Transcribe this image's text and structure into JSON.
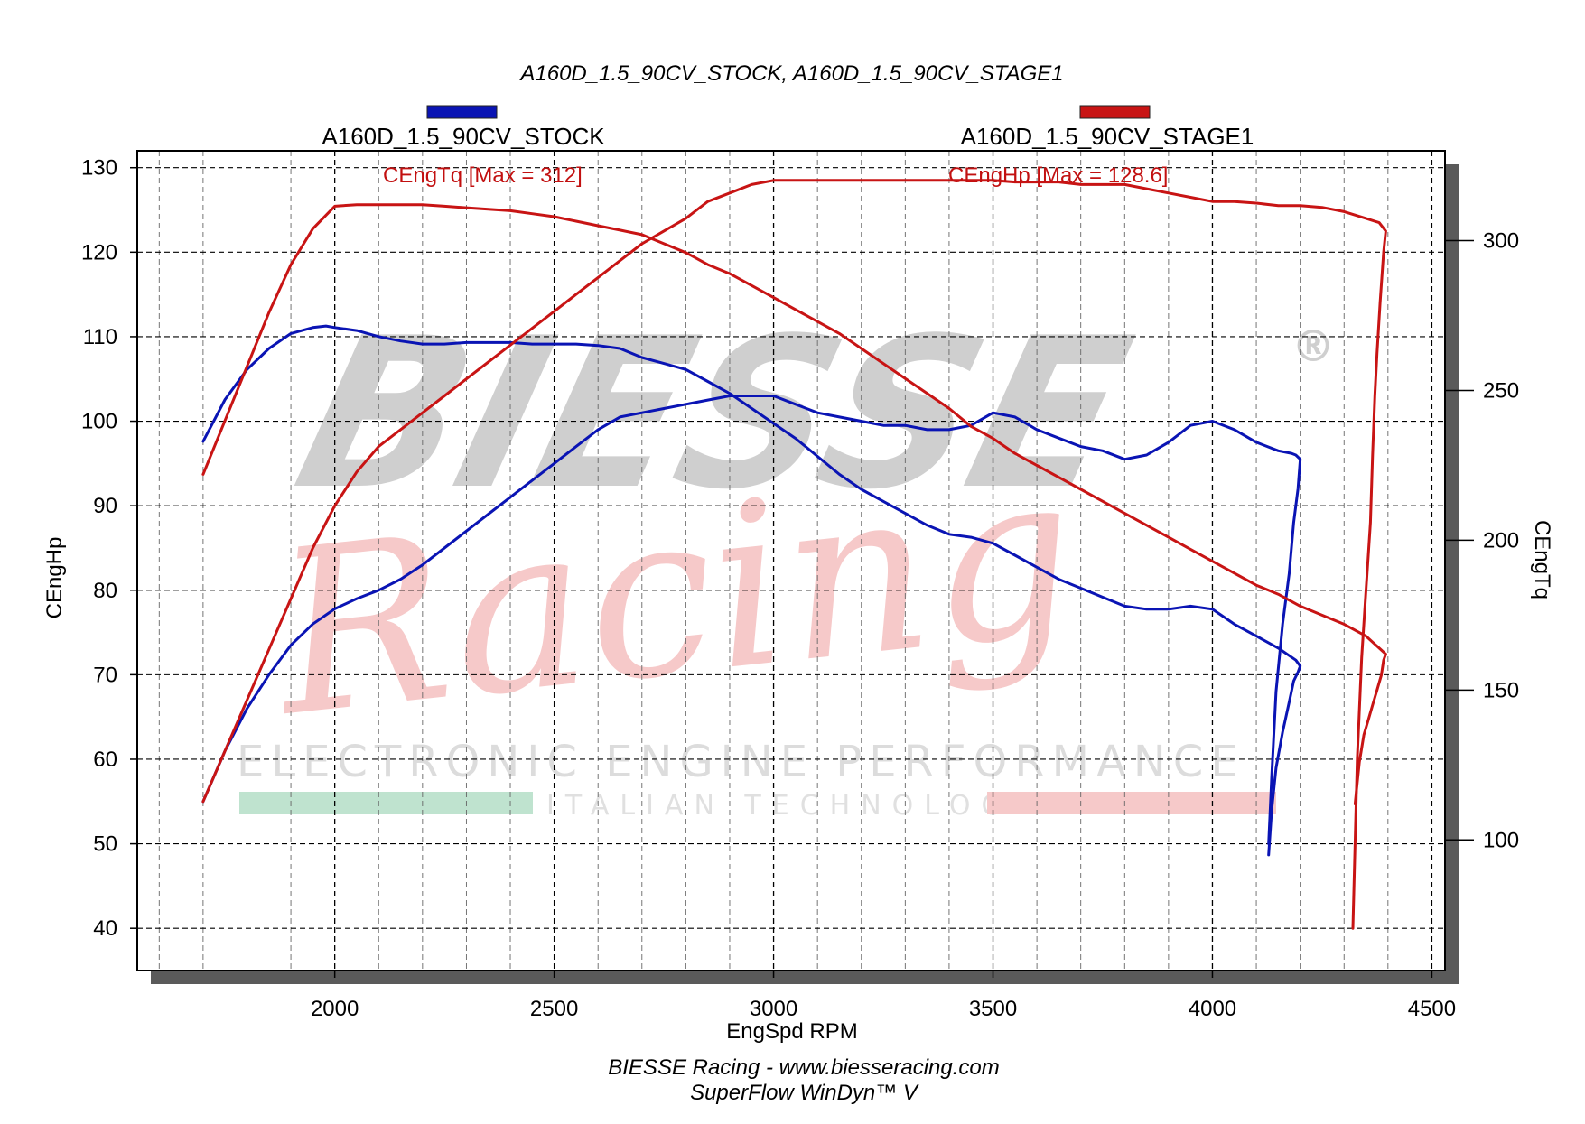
{
  "chart_data": {
    "type": "line",
    "title": "A160D_1.5_90CV_STOCK, A160D_1.5_90CV_STAGE1",
    "legend": [
      {
        "name": "A160D_1.5_90CV_STOCK",
        "color": "#0a14b4"
      },
      {
        "name": "A160D_1.5_90CV_STAGE1",
        "color": "#c81414"
      }
    ],
    "max_labels": {
      "torque": "CEngTq [Max = 312]",
      "power": "CEngHp [Max = 128.6]"
    },
    "xlabel": "EngSpd RPM",
    "ylabel_left": "CEngHp",
    "ylabel_right": "CEngTq",
    "xlim": [
      1550,
      4530
    ],
    "xticks": [
      2000,
      2500,
      3000,
      3500,
      4000,
      4500
    ],
    "ylim_left": [
      35,
      132
    ],
    "yticks_left": [
      40,
      50,
      60,
      70,
      80,
      90,
      100,
      110,
      120,
      130
    ],
    "ylim_right": [
      56.4,
      330
    ],
    "yticks_right": [
      100,
      150,
      200,
      250,
      300
    ],
    "grid": true,
    "footer": [
      "BIESSE Racing - www.biesseracing.com",
      "SuperFlow WinDyn™ V"
    ],
    "watermark": {
      "brand": "BIESSE",
      "registered": "®",
      "script": "Racing",
      "line1": "ELECTRONIC ENGINE PERFORMANCE",
      "line2": "ITALIAN TECHNOLOGY",
      "bar_colors": [
        "#bfe3cf",
        "#f6c9c9"
      ]
    },
    "series": [
      {
        "name": "A160D_1.5_90CV_STOCK",
        "axis": "left",
        "color": "#0a14b4",
        "x": [
          1700,
          1750,
          1800,
          1850,
          1900,
          1950,
          2000,
          2050,
          2100,
          2150,
          2200,
          2250,
          2300,
          2350,
          2400,
          2450,
          2500,
          2550,
          2600,
          2650,
          2700,
          2750,
          2800,
          2850,
          2900,
          2950,
          3000,
          3050,
          3100,
          3150,
          3200,
          3250,
          3300,
          3350,
          3400,
          3450,
          3500,
          3550,
          3600,
          3650,
          3700,
          3750,
          3800,
          3850,
          3900,
          3950,
          4000,
          4050,
          4100,
          4150,
          4180,
          4190,
          4200,
          4195,
          4185,
          4175,
          4160,
          4145,
          4135,
          4128
        ],
        "values": [
          55,
          61,
          66,
          70,
          73.5,
          76,
          77.8,
          79,
          80,
          81.3,
          83,
          85,
          87,
          89,
          91,
          93,
          95,
          97,
          99,
          100.5,
          101,
          101.5,
          102,
          102.5,
          103,
          103,
          103,
          102,
          101,
          100.5,
          100,
          99.5,
          99.5,
          99,
          99,
          99.5,
          101,
          100.5,
          99,
          98,
          97,
          96.5,
          95.5,
          96,
          97.5,
          99.5,
          100,
          99,
          97.5,
          96.5,
          96.2,
          96,
          95.5,
          92,
          88,
          82,
          76,
          68,
          58,
          50
        ]
      },
      {
        "name": "A160D_1.5_90CV_STOCK",
        "axis": "right",
        "color": "#0a14b4",
        "x": [
          1700,
          1750,
          1800,
          1850,
          1900,
          1950,
          1980,
          2000,
          2050,
          2100,
          2150,
          2200,
          2250,
          2300,
          2350,
          2400,
          2450,
          2500,
          2550,
          2600,
          2650,
          2700,
          2750,
          2800,
          2850,
          2900,
          2950,
          3000,
          3050,
          3100,
          3150,
          3200,
          3250,
          3300,
          3350,
          3400,
          3450,
          3500,
          3550,
          3600,
          3650,
          3700,
          3750,
          3800,
          3850,
          3900,
          3950,
          4000,
          4050,
          4100,
          4150,
          4190,
          4200,
          4195,
          4185,
          4175,
          4160,
          4145,
          4135,
          4128
        ],
        "values": [
          233,
          247,
          257,
          264,
          269,
          271,
          271.5,
          271,
          270,
          268,
          266.5,
          265.5,
          265.5,
          266,
          266,
          266,
          265.5,
          265.5,
          265.5,
          265,
          264,
          261,
          259,
          257,
          253,
          249,
          244,
          239,
          234,
          228,
          222,
          217,
          213,
          209,
          205,
          202,
          201,
          199,
          195,
          191,
          187,
          184,
          181,
          178,
          177,
          177,
          178,
          177,
          172,
          168,
          164,
          160,
          158,
          156,
          153,
          146,
          136,
          124,
          110,
          95
        ]
      },
      {
        "name": "A160D_1.5_90CV_STAGE1",
        "axis": "left",
        "color": "#c81414",
        "x": [
          1700,
          1750,
          1800,
          1850,
          1900,
          1950,
          2000,
          2050,
          2100,
          2150,
          2200,
          2250,
          2300,
          2350,
          2400,
          2450,
          2500,
          2550,
          2600,
          2650,
          2700,
          2750,
          2800,
          2850,
          2900,
          2950,
          3000,
          3050,
          3100,
          3150,
          3200,
          3250,
          3300,
          3350,
          3400,
          3450,
          3500,
          3550,
          3600,
          3650,
          3700,
          3750,
          3800,
          3850,
          3900,
          3950,
          4000,
          4050,
          4100,
          4150,
          4200,
          4250,
          4300,
          4350,
          4380,
          4395,
          4390,
          4382,
          4375,
          4370,
          4365,
          4360,
          4350,
          4340,
          4330,
          4320
        ],
        "values": [
          55,
          61,
          67,
          73,
          79,
          85,
          90,
          94,
          97,
          99,
          101,
          103,
          105,
          107,
          109,
          111,
          113,
          115,
          117,
          119,
          121,
          122.5,
          124,
          126,
          127,
          128,
          128.5,
          128.5,
          128.5,
          128.5,
          128.5,
          128.5,
          128.5,
          128.5,
          128.5,
          128.5,
          128.5,
          128.3,
          128.3,
          128.3,
          128,
          128,
          128,
          127.5,
          127,
          126.5,
          126,
          126,
          125.8,
          125.5,
          125.5,
          125.3,
          124.8,
          124,
          123.5,
          122.5,
          120,
          114,
          108,
          103,
          96,
          88,
          80,
          72,
          60,
          40
        ]
      },
      {
        "name": "A160D_1.5_90CV_STAGE1",
        "axis": "right",
        "color": "#c81414",
        "x": [
          1700,
          1750,
          1800,
          1850,
          1900,
          1950,
          2000,
          2050,
          2100,
          2150,
          2200,
          2250,
          2300,
          2350,
          2400,
          2450,
          2500,
          2550,
          2600,
          2650,
          2700,
          2750,
          2800,
          2850,
          2900,
          2950,
          3000,
          3050,
          3100,
          3150,
          3200,
          3250,
          3300,
          3350,
          3400,
          3450,
          3500,
          3550,
          3600,
          3650,
          3700,
          3750,
          3800,
          3850,
          3900,
          3950,
          4000,
          4050,
          4100,
          4150,
          4200,
          4250,
          4300,
          4350,
          4380,
          4395,
          4390,
          4385,
          4375,
          4365,
          4355,
          4345,
          4335,
          4325
        ],
        "values": [
          222,
          240,
          258,
          276,
          292,
          304,
          311.5,
          312,
          312,
          312,
          312,
          311.5,
          311,
          310.5,
          310,
          309,
          308,
          306.5,
          305,
          303.5,
          302,
          299,
          296,
          292,
          289,
          285,
          281,
          277,
          273,
          269,
          264,
          259,
          254,
          249,
          244,
          238,
          234,
          229,
          225,
          221,
          217,
          213,
          209,
          205,
          201,
          197,
          193,
          189,
          185,
          182,
          178,
          175,
          172,
          168,
          164,
          162,
          160,
          155,
          150,
          145,
          140,
          135,
          126,
          112
        ]
      }
    ]
  }
}
